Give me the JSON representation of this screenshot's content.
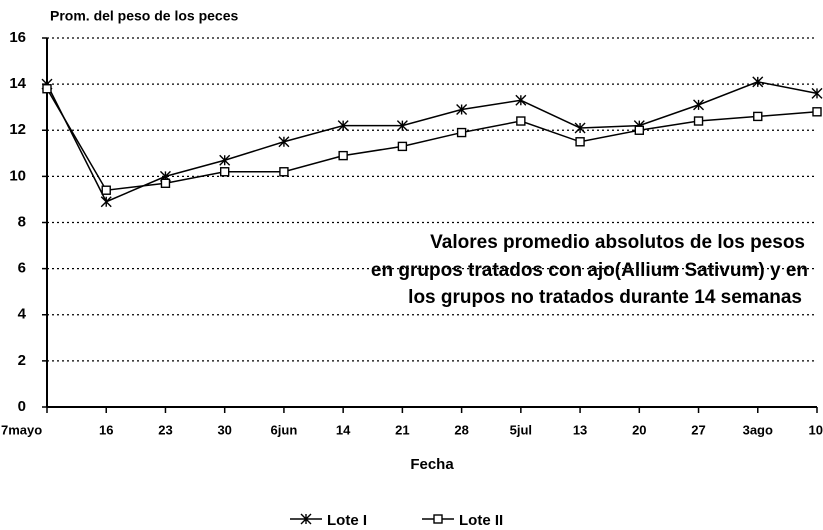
{
  "chart_data": {
    "type": "line",
    "title": "Prom. del peso de los peces",
    "x_label": "Fecha",
    "annotation": [
      "Valores promedio absolutos de los pesos",
      "en grupos tratados con ajo(Allium Sativum) y en",
      "los grupos no tratados durante 14 semanas"
    ],
    "categories": [
      "7mayo",
      "16",
      "23",
      "30",
      "6jun",
      "14",
      "21",
      "28",
      "5jul",
      "13",
      "20",
      "27",
      "3ago",
      "10"
    ],
    "series": [
      {
        "name": "Lote I",
        "color": "#000000",
        "marker": "x",
        "values": [
          14.0,
          8.9,
          10.0,
          10.7,
          11.5,
          12.2,
          12.2,
          12.9,
          13.3,
          12.1,
          12.2,
          13.1,
          14.1,
          13.6
        ]
      },
      {
        "name": "Lote II",
        "color": "#000000",
        "marker": "square",
        "values": [
          13.8,
          9.4,
          9.7,
          10.2,
          10.2,
          10.9,
          11.3,
          11.9,
          12.4,
          11.5,
          12.0,
          12.4,
          12.6,
          12.8
        ]
      }
    ],
    "ylim": [
      0,
      16
    ],
    "yticks": [
      0,
      2,
      4,
      6,
      8,
      10,
      12,
      14,
      16
    ],
    "grid": true
  }
}
